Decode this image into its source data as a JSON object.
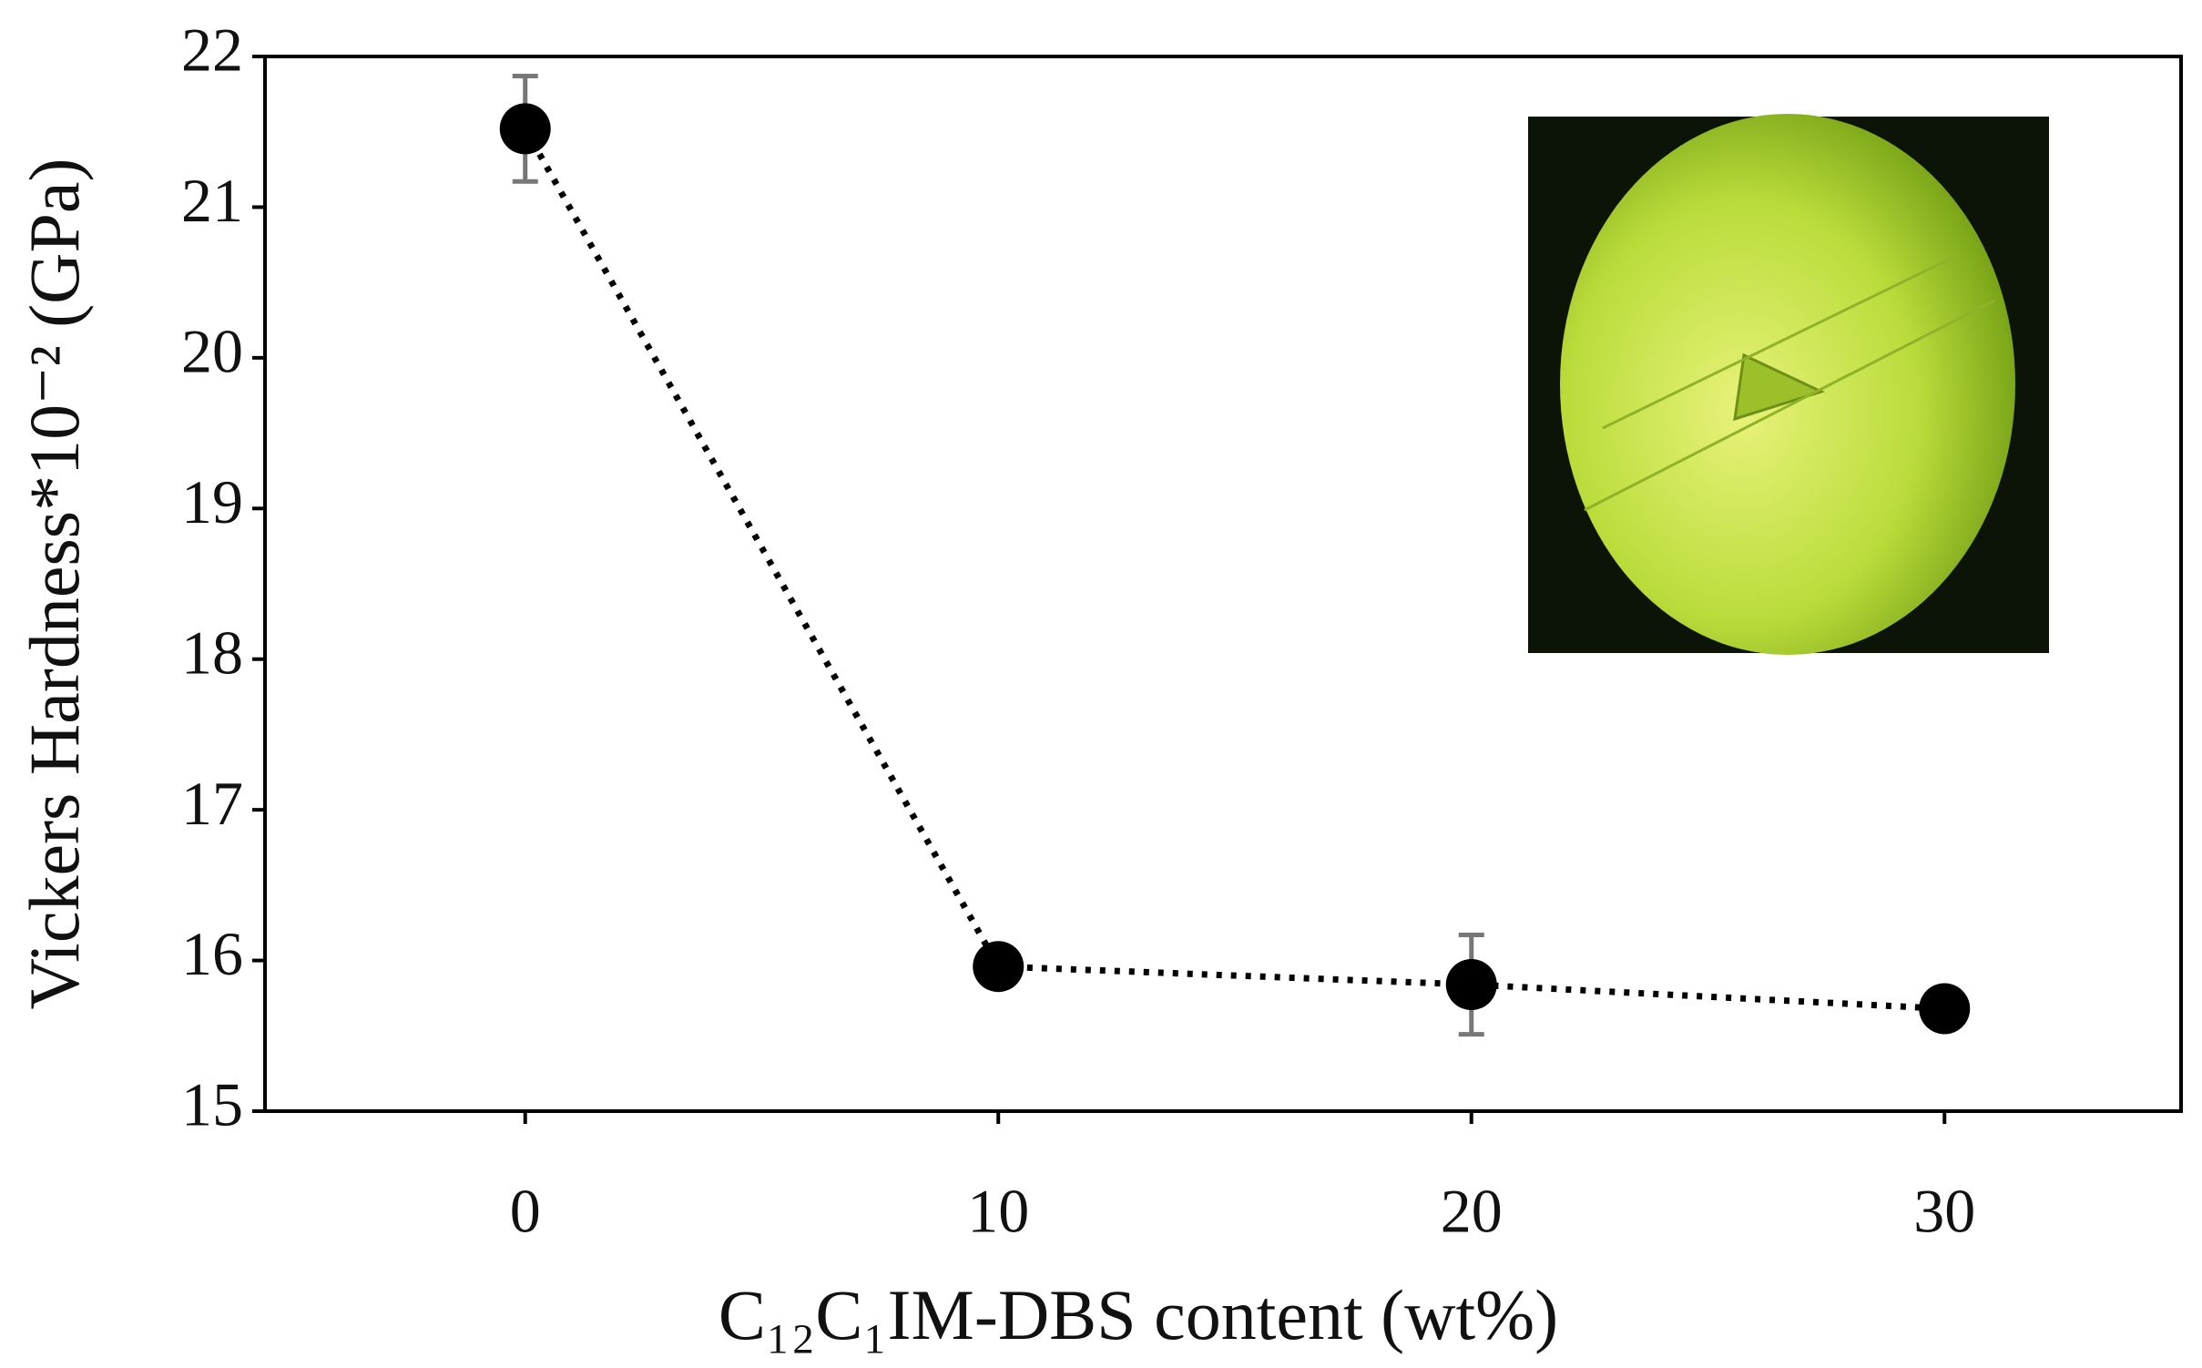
{
  "chart_data": {
    "type": "scatter",
    "x_label": "C₁₂C₁IM-DBS content (wt%)",
    "y_label": "Vickers Hardness*10⁻² (GPa)",
    "x": [
      0,
      10,
      20,
      30
    ],
    "series": [
      {
        "color": "#000000",
        "values": [
          21.52,
          15.96,
          15.84,
          15.68
        ],
        "errors": [
          0.35,
          0.13,
          0.33,
          0.05
        ],
        "error_color": "#777777",
        "line_style": "dotted"
      }
    ],
    "xlim": [
      -5.5,
      35
    ],
    "xticks": [
      0,
      10,
      20,
      30
    ],
    "ylim": [
      15,
      22
    ],
    "yticks": [
      15,
      16,
      17,
      18,
      19,
      20,
      21,
      22
    ],
    "grid": false
  }
}
